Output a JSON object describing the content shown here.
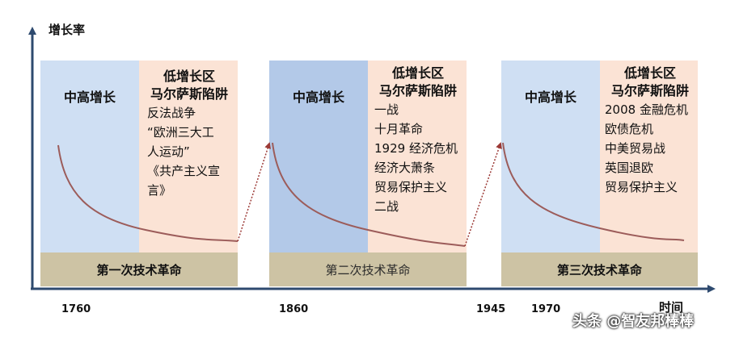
{
  "axis": {
    "y_label": "增长率",
    "x_label": "时间"
  },
  "stages": [
    {
      "high_label": "中高增长",
      "low_title_1": "低增长区",
      "low_title_2": "马尔萨斯陷阱",
      "events": [
        "反法战争",
        "“欧洲三大工",
        "人运动”",
        "《共产主义宣",
        "言》"
      ],
      "band": "第一次技术革命"
    },
    {
      "high_label": "中高增长",
      "low_title_1": "低增长区",
      "low_title_2": "马尔萨斯陷阱",
      "events": [
        "一战",
        "十月革命",
        "1929 经济危机",
        "经济大萧条",
        "贸易保护主义",
        "二战"
      ],
      "band": "第二次技术革命"
    },
    {
      "high_label": "中高增长",
      "low_title_1": "低增长区",
      "low_title_2": "马尔萨斯陷阱",
      "events": [
        "2008 金融危机",
        "欧债危机",
        "中美贸易战",
        "英国退欧",
        "贸易保护主义"
      ],
      "band": "第三次技术革命"
    }
  ],
  "years": [
    "1760",
    "1860",
    "1945",
    "1970"
  ],
  "watermark": "头条 @智友邦棒棒",
  "colors": {
    "axis": "#2e4a6f",
    "curve": "#9c5c5a",
    "connector": "#9c3a36",
    "high_zone": "#cfdff3",
    "low_zone": "#fbe3d5",
    "band": "#cdc3a4"
  }
}
